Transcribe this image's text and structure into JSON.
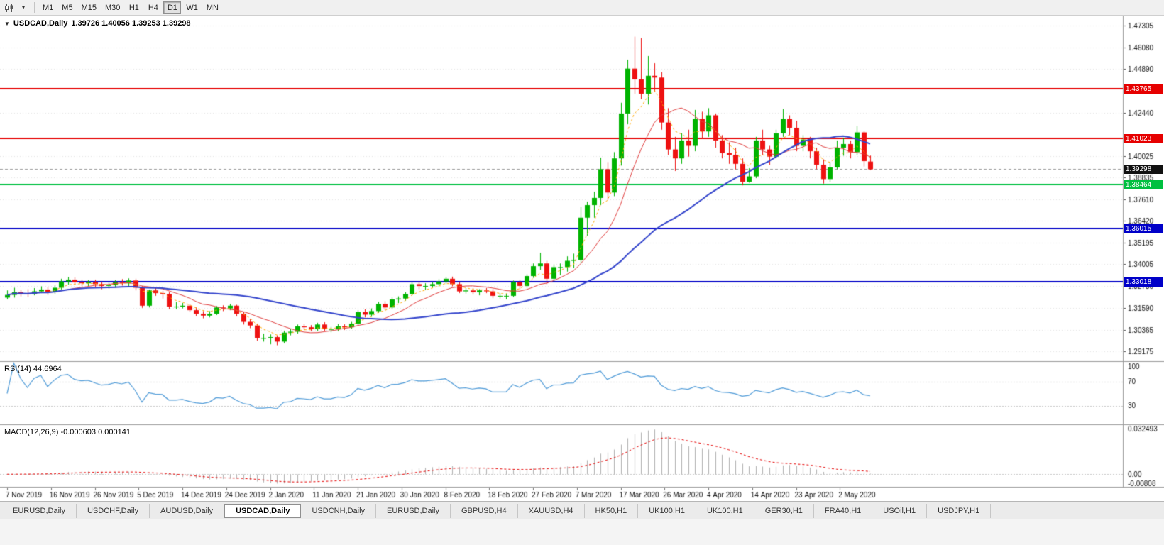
{
  "icons": {
    "caret_down": "▾",
    "collapse": "▼"
  },
  "toolbar": {
    "timeframes": [
      "M1",
      "M5",
      "M15",
      "M30",
      "H1",
      "H4",
      "D1",
      "W1",
      "MN"
    ],
    "active": "D1"
  },
  "chart_header": {
    "symbol_period": "USDCAD,Daily",
    "ohlc": "1.39726 1.40056 1.39253 1.39298"
  },
  "tabs": {
    "items": [
      {
        "label": "EURUSD,Daily",
        "active": false
      },
      {
        "label": "USDCHF,Daily",
        "active": false
      },
      {
        "label": "AUDUSD,Daily",
        "active": false
      },
      {
        "label": "USDCAD,Daily",
        "active": true
      },
      {
        "label": "USDCNH,Daily",
        "active": false
      },
      {
        "label": "EURUSD,Daily",
        "active": false
      },
      {
        "label": "GBPUSD,H4",
        "active": false
      },
      {
        "label": "XAUUSD,H4",
        "active": false
      },
      {
        "label": "HK50,H1",
        "active": false
      },
      {
        "label": "UK100,H1",
        "active": false
      },
      {
        "label": "UK100,H1",
        "active": false
      },
      {
        "label": "GER30,H1",
        "active": false
      },
      {
        "label": "FRA40,H1",
        "active": false
      },
      {
        "label": "USOil,H1",
        "active": false
      },
      {
        "label": "USDJPY,H1",
        "active": false
      }
    ]
  },
  "chart_data": {
    "type": "candlestick",
    "symbol": "USDCAD",
    "timeframe": "Daily",
    "colors": {
      "up": "#00b300",
      "down": "#ee1111",
      "grid": "#e4e4e4",
      "axis_text": "#111111",
      "current_line": "#999999"
    },
    "price_axis": {
      "min": 1.2865,
      "max": 1.4785,
      "ticks": [
        1.47305,
        1.4608,
        1.4489,
        1.4244,
        1.40025,
        1.38835,
        1.3761,
        1.3642,
        1.35195,
        1.34005,
        1.3278,
        1.3159,
        1.30365,
        1.29175
      ]
    },
    "current_price": 1.39298,
    "levels": [
      {
        "value": 1.43765,
        "color": "#e60000",
        "label": "1.43765"
      },
      {
        "value": 1.41023,
        "color": "#e60000",
        "label": "1.41023"
      },
      {
        "value": 1.38464,
        "color": "#00c040",
        "label": "1.38464"
      },
      {
        "value": 1.36015,
        "color": "#0000c8",
        "label": "1.36015"
      },
      {
        "value": 1.33018,
        "color": "#0000c8",
        "label": "1.33018"
      }
    ],
    "moving_averages": [
      {
        "name": "fast-ma",
        "period": 5,
        "method": "ema",
        "color": "#ffaa00",
        "width": 1,
        "dash": [
          3,
          3
        ]
      },
      {
        "name": "mid-ma",
        "period": 10,
        "method": "sma",
        "color": "#e03c3c",
        "width": 1,
        "dash": []
      },
      {
        "name": "slow-ma",
        "period": 34,
        "method": "sma",
        "color": "#3344cc",
        "width": 2,
        "dash": []
      }
    ],
    "candles": [
      [
        1.3215,
        1.3255,
        1.3205,
        1.323
      ],
      [
        1.323,
        1.327,
        1.3215,
        1.3245
      ],
      [
        1.3245,
        1.3258,
        1.3222,
        1.324
      ],
      [
        1.324,
        1.3262,
        1.3218,
        1.3235
      ],
      [
        1.3235,
        1.3268,
        1.3228,
        1.325
      ],
      [
        1.325,
        1.3278,
        1.324,
        1.326
      ],
      [
        1.326,
        1.3272,
        1.323,
        1.3245
      ],
      [
        1.3245,
        1.3285,
        1.3235,
        1.327
      ],
      [
        1.327,
        1.332,
        1.326,
        1.3305
      ],
      [
        1.3305,
        1.333,
        1.3288,
        1.3315
      ],
      [
        1.3315,
        1.3328,
        1.3285,
        1.33
      ],
      [
        1.33,
        1.3315,
        1.3278,
        1.3295
      ],
      [
        1.3295,
        1.3312,
        1.328,
        1.33
      ],
      [
        1.33,
        1.3315,
        1.3272,
        1.329
      ],
      [
        1.329,
        1.3302,
        1.3262,
        1.328
      ],
      [
        1.328,
        1.3298,
        1.3265,
        1.3285
      ],
      [
        1.3285,
        1.3312,
        1.327,
        1.33
      ],
      [
        1.33,
        1.3318,
        1.3282,
        1.3295
      ],
      [
        1.3295,
        1.3322,
        1.328,
        1.331
      ],
      [
        1.331,
        1.332,
        1.3255,
        1.327
      ],
      [
        1.327,
        1.328,
        1.3158,
        1.317
      ],
      [
        1.317,
        1.326,
        1.316,
        1.3255
      ],
      [
        1.3255,
        1.327,
        1.3225,
        1.324
      ],
      [
        1.324,
        1.3252,
        1.321,
        1.3235
      ],
      [
        1.3235,
        1.3245,
        1.315,
        1.3165
      ],
      [
        1.3165,
        1.319,
        1.315,
        1.3165
      ],
      [
        1.3165,
        1.3185,
        1.3155,
        1.317
      ],
      [
        1.317,
        1.318,
        1.3135,
        1.3145
      ],
      [
        1.3145,
        1.316,
        1.3112,
        1.3125
      ],
      [
        1.3125,
        1.314,
        1.31,
        1.3115
      ],
      [
        1.3115,
        1.314,
        1.3105,
        1.3125
      ],
      [
        1.3125,
        1.3168,
        1.3118,
        1.316
      ],
      [
        1.316,
        1.3172,
        1.314,
        1.3155
      ],
      [
        1.3155,
        1.318,
        1.3145,
        1.317
      ],
      [
        1.317,
        1.3175,
        1.311,
        1.3125
      ],
      [
        1.3125,
        1.3135,
        1.3065,
        1.308
      ],
      [
        1.308,
        1.3095,
        1.3045,
        1.306
      ],
      [
        1.306,
        1.307,
        1.2975,
        1.299
      ],
      [
        1.299,
        1.3015,
        1.297,
        1.299
      ],
      [
        1.299,
        1.301,
        1.2955,
        1.2995
      ],
      [
        1.2995,
        1.3005,
        1.295,
        1.297
      ],
      [
        1.297,
        1.303,
        1.296,
        1.302
      ],
      [
        1.302,
        1.304,
        1.3005,
        1.3025
      ],
      [
        1.3025,
        1.3065,
        1.3015,
        1.3055
      ],
      [
        1.3055,
        1.3068,
        1.3035,
        1.305
      ],
      [
        1.305,
        1.3062,
        1.3028,
        1.304
      ],
      [
        1.304,
        1.3075,
        1.303,
        1.3065
      ],
      [
        1.3065,
        1.3078,
        1.303,
        1.304
      ],
      [
        1.304,
        1.3052,
        1.3022,
        1.304
      ],
      [
        1.304,
        1.3068,
        1.3028,
        1.3055
      ],
      [
        1.3055,
        1.3066,
        1.3035,
        1.305
      ],
      [
        1.305,
        1.308,
        1.3042,
        1.307
      ],
      [
        1.307,
        1.3145,
        1.3062,
        1.3135
      ],
      [
        1.3135,
        1.315,
        1.3105,
        1.312
      ],
      [
        1.312,
        1.3155,
        1.3108,
        1.314
      ],
      [
        1.314,
        1.3192,
        1.313,
        1.318
      ],
      [
        1.318,
        1.3195,
        1.3145,
        1.316
      ],
      [
        1.316,
        1.3215,
        1.315,
        1.3205
      ],
      [
        1.3205,
        1.3222,
        1.3185,
        1.321
      ],
      [
        1.321,
        1.3245,
        1.3198,
        1.3235
      ],
      [
        1.3235,
        1.3302,
        1.3228,
        1.329
      ],
      [
        1.329,
        1.3305,
        1.3262,
        1.328
      ],
      [
        1.328,
        1.3295,
        1.3258,
        1.328
      ],
      [
        1.328,
        1.3302,
        1.3268,
        1.329
      ],
      [
        1.329,
        1.3318,
        1.3275,
        1.3305
      ],
      [
        1.3305,
        1.333,
        1.329,
        1.332
      ],
      [
        1.332,
        1.3332,
        1.3278,
        1.329
      ],
      [
        1.329,
        1.33,
        1.324,
        1.325
      ],
      [
        1.325,
        1.3268,
        1.3238,
        1.3255
      ],
      [
        1.3255,
        1.3268,
        1.3232,
        1.3245
      ],
      [
        1.3245,
        1.3262,
        1.3228,
        1.3255
      ],
      [
        1.3255,
        1.3268,
        1.324,
        1.325
      ],
      [
        1.325,
        1.3262,
        1.3212,
        1.3225
      ],
      [
        1.3225,
        1.324,
        1.321,
        1.3225
      ],
      [
        1.3225,
        1.3238,
        1.3205,
        1.3225
      ],
      [
        1.3225,
        1.331,
        1.3218,
        1.33
      ],
      [
        1.33,
        1.3315,
        1.3262,
        1.328
      ],
      [
        1.328,
        1.3345,
        1.327,
        1.3335
      ],
      [
        1.3335,
        1.3405,
        1.3325,
        1.339
      ],
      [
        1.339,
        1.3465,
        1.337,
        1.3405
      ],
      [
        1.3405,
        1.342,
        1.329,
        1.332
      ],
      [
        1.332,
        1.34,
        1.3305,
        1.3385
      ],
      [
        1.3385,
        1.3405,
        1.334,
        1.3385
      ],
      [
        1.3385,
        1.3445,
        1.336,
        1.342
      ],
      [
        1.342,
        1.346,
        1.338,
        1.3425
      ],
      [
        1.3425,
        1.372,
        1.341,
        1.366
      ],
      [
        1.366,
        1.375,
        1.356,
        1.373
      ],
      [
        1.373,
        1.3805,
        1.366,
        1.377
      ],
      [
        1.377,
        1.3995,
        1.373,
        1.393
      ],
      [
        1.393,
        1.397,
        1.376,
        1.38
      ],
      [
        1.38,
        1.4025,
        1.378,
        1.399
      ],
      [
        1.399,
        1.43,
        1.395,
        1.424
      ],
      [
        1.424,
        1.454,
        1.418,
        1.449
      ],
      [
        1.449,
        1.4668,
        1.435,
        1.443
      ],
      [
        1.443,
        1.466,
        1.432,
        1.435
      ],
      [
        1.435,
        1.456,
        1.429,
        1.445
      ],
      [
        1.445,
        1.452,
        1.436,
        1.444
      ],
      [
        1.444,
        1.447,
        1.415,
        1.419
      ],
      [
        1.419,
        1.427,
        1.401,
        1.404
      ],
      [
        1.404,
        1.411,
        1.392,
        1.399
      ],
      [
        1.399,
        1.413,
        1.396,
        1.409
      ],
      [
        1.409,
        1.415,
        1.4,
        1.406
      ],
      [
        1.406,
        1.426,
        1.403,
        1.421
      ],
      [
        1.421,
        1.425,
        1.41,
        1.414
      ],
      [
        1.414,
        1.427,
        1.411,
        1.423
      ],
      [
        1.423,
        1.424,
        1.405,
        1.409
      ],
      [
        1.409,
        1.412,
        1.399,
        1.402
      ],
      [
        1.402,
        1.408,
        1.396,
        1.401
      ],
      [
        1.401,
        1.405,
        1.393,
        1.396
      ],
      [
        1.396,
        1.399,
        1.384,
        1.386
      ],
      [
        1.386,
        1.3935,
        1.3855,
        1.389
      ],
      [
        1.389,
        1.411,
        1.388,
        1.409
      ],
      [
        1.409,
        1.415,
        1.401,
        1.404
      ],
      [
        1.404,
        1.406,
        1.3955,
        1.4
      ],
      [
        1.4,
        1.415,
        1.399,
        1.413
      ],
      [
        1.413,
        1.4265,
        1.411,
        1.421
      ],
      [
        1.421,
        1.423,
        1.412,
        1.416
      ],
      [
        1.416,
        1.42,
        1.403,
        1.406
      ],
      [
        1.406,
        1.412,
        1.403,
        1.4095
      ],
      [
        1.4095,
        1.411,
        1.399,
        1.403
      ],
      [
        1.403,
        1.405,
        1.393,
        1.3955
      ],
      [
        1.3955,
        1.3985,
        1.385,
        1.3875
      ],
      [
        1.3875,
        1.397,
        1.386,
        1.394
      ],
      [
        1.394,
        1.409,
        1.393,
        1.405
      ],
      [
        1.405,
        1.4105,
        1.4005,
        1.407
      ],
      [
        1.407,
        1.409,
        1.399,
        1.4025
      ],
      [
        1.4025,
        1.417,
        1.401,
        1.4135
      ],
      [
        1.4135,
        1.414,
        1.3945,
        1.3975
      ],
      [
        1.39726,
        1.40056,
        1.39253,
        1.39298
      ]
    ],
    "date_labels": [
      {
        "i": 0,
        "t": "7 Nov 2019"
      },
      {
        "i": 6.5,
        "t": "16 Nov 2019"
      },
      {
        "i": 13,
        "t": "26 Nov 2019"
      },
      {
        "i": 19.5,
        "t": "5 Dec 2019"
      },
      {
        "i": 26,
        "t": "14 Dec 2019"
      },
      {
        "i": 32.5,
        "t": "24 Dec 2019"
      },
      {
        "i": 39,
        "t": "2 Jan 2020"
      },
      {
        "i": 45.5,
        "t": "11 Jan 2020"
      },
      {
        "i": 52,
        "t": "21 Jan 2020"
      },
      {
        "i": 58.5,
        "t": "30 Jan 2020"
      },
      {
        "i": 65,
        "t": "8 Feb 2020"
      },
      {
        "i": 71.5,
        "t": "18 Feb 2020"
      },
      {
        "i": 78,
        "t": "27 Feb 2020"
      },
      {
        "i": 84.5,
        "t": "7 Mar 2020"
      },
      {
        "i": 91,
        "t": "17 Mar 2020"
      },
      {
        "i": 97.5,
        "t": "26 Mar 2020"
      },
      {
        "i": 104,
        "t": "4 Apr 2020"
      },
      {
        "i": 110.5,
        "t": "14 Apr 2020"
      },
      {
        "i": 117,
        "t": "23 Apr 2020"
      },
      {
        "i": 123.5,
        "t": "2 May 2020"
      }
    ],
    "rsi": {
      "label": "RSI(14) 44.6964",
      "period": 14,
      "value": 44.6964,
      "levels": [
        100,
        70,
        30
      ],
      "color": "#4f9bd8"
    },
    "macd": {
      "label": "MACD(12,26,9) -0.000603 0.000141",
      "fast": 12,
      "slow": 26,
      "signal": 9,
      "values_shown": [
        -0.000603,
        0.000141
      ],
      "axis": [
        "0.032493",
        "0.00",
        "-0.00808"
      ],
      "max": 0.032493,
      "min": -0.00808,
      "hist_color": "#b0b0b0",
      "signal_color": "#e60000"
    }
  }
}
